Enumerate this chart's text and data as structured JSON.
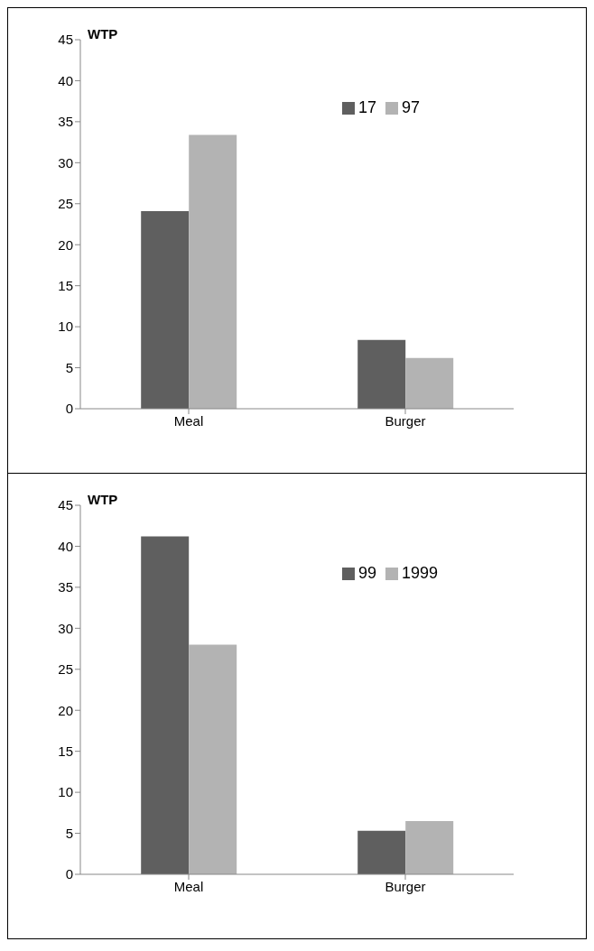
{
  "chart_data": [
    {
      "type": "bar",
      "ylabel": "WTP",
      "categories": [
        "Meal",
        "Burger"
      ],
      "series": [
        {
          "name": "17",
          "color": "#5f5f5f",
          "values": [
            24.1,
            8.4
          ]
        },
        {
          "name": "97",
          "color": "#b3b3b3",
          "values": [
            33.4,
            6.2
          ]
        }
      ],
      "ylim": [
        0,
        45
      ],
      "yticks": [
        0,
        5,
        10,
        15,
        20,
        25,
        30,
        35,
        40,
        45
      ],
      "legend": "top right",
      "grid": false
    },
    {
      "type": "bar",
      "ylabel": "WTP",
      "categories": [
        "Meal",
        "Burger"
      ],
      "series": [
        {
          "name": "99",
          "color": "#5f5f5f",
          "values": [
            41.2,
            5.3
          ]
        },
        {
          "name": "1999",
          "color": "#b3b3b3",
          "values": [
            28.0,
            6.5
          ]
        }
      ],
      "ylim": [
        0,
        45
      ],
      "yticks": [
        0,
        5,
        10,
        15,
        20,
        25,
        30,
        35,
        40,
        45
      ],
      "legend": "top right",
      "grid": false
    }
  ]
}
